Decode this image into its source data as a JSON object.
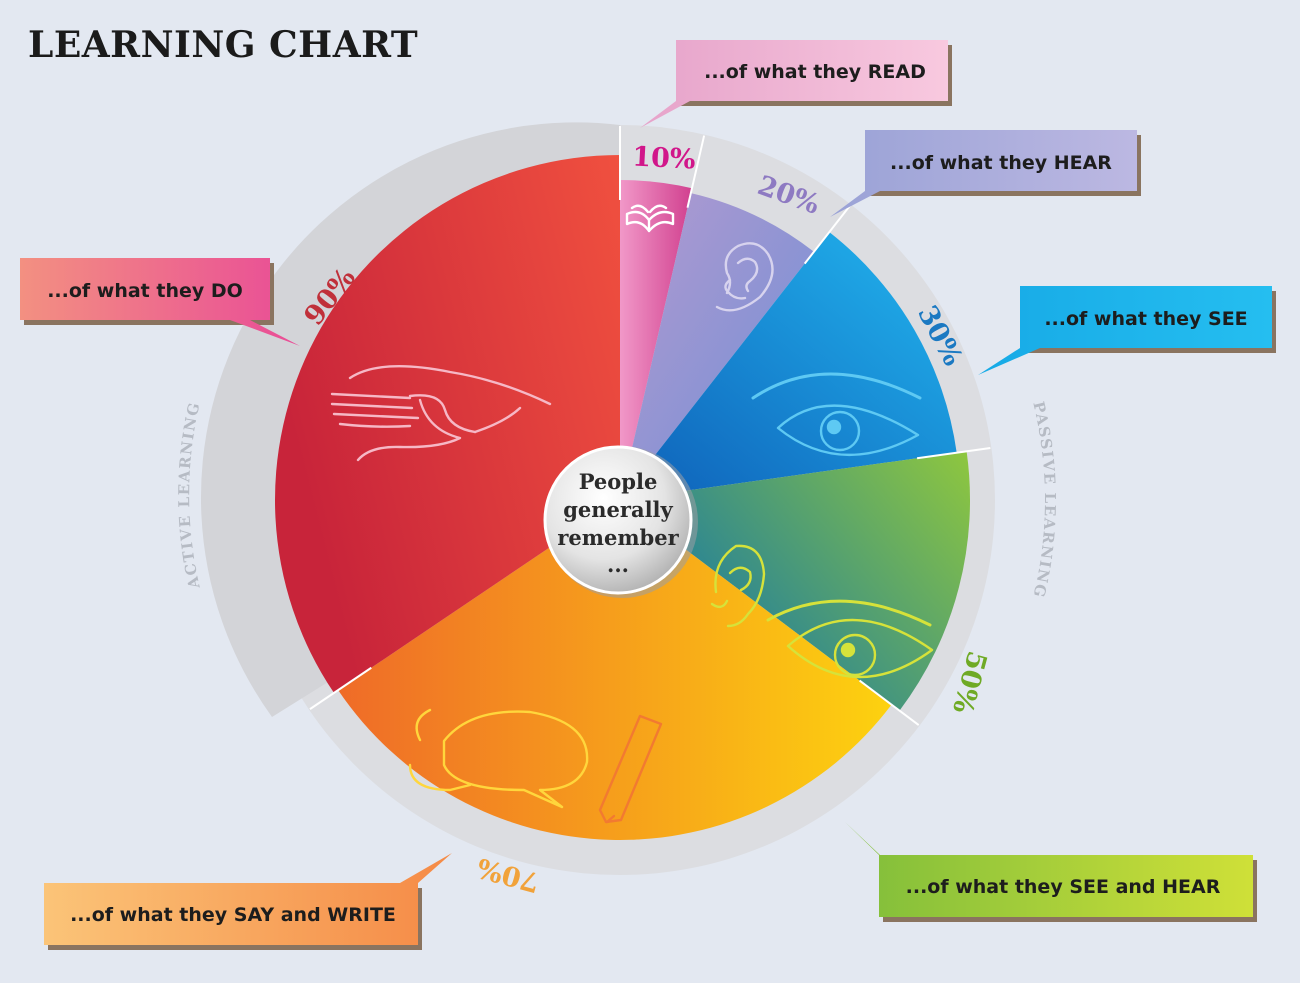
{
  "title": "LEARNING CHART",
  "center": {
    "lines": [
      "People",
      "generally",
      "remember",
      "..."
    ]
  },
  "ring_labels": {
    "active": "ACTIVE LEARNING",
    "passive": "PASSIVE LEARNING"
  },
  "segments": [
    {
      "id": "read",
      "percent": "10%",
      "label": "...of what they READ",
      "pct_color": "#d1168a",
      "color_a": "#ef8cc4",
      "color_b": "#d33f93",
      "icon": "book-icon"
    },
    {
      "id": "hear",
      "percent": "20%",
      "label": "...of what they HEAR",
      "pct_color": "#8e7ac2",
      "color_a": "#a69ad3",
      "color_b": "#7e87cc",
      "icon": "ear-icon"
    },
    {
      "id": "see",
      "percent": "30%",
      "label": "...of what they SEE",
      "pct_color": "#1b79c2",
      "color_a": "#1fa5e8",
      "color_b": "#1268bf",
      "icon": "eye-icon"
    },
    {
      "id": "see-and-hear",
      "percent": "50%",
      "label": "...of what they SEE and HEAR",
      "pct_color": "#6faa25",
      "color_a": "#8cc43c",
      "color_b": "#1a7aa6",
      "icon": "ear-and-eye-icon"
    },
    {
      "id": "say-and-write",
      "percent": "70%",
      "label": "...of what they SAY and WRITE",
      "pct_color": "#f1a23a",
      "color_a": "#fcd514",
      "color_b": "#ef7427",
      "icon": "speech-and-pencil-icon"
    },
    {
      "id": "do",
      "percent": "90%",
      "label": "...of what they DO",
      "pct_color": "#c0303a",
      "color_a": "#ee4a3e",
      "color_b": "#cc2233",
      "icon": "hand-icon"
    }
  ],
  "callout_colors": {
    "read": [
      "#f6c3dd",
      "#e8a5cb"
    ],
    "hear": [
      "#b6b6e0",
      "#949ad1"
    ],
    "see": [
      "#1fbbed",
      "#0f9fe0"
    ],
    "see-and-hear": [
      "#8fc43a",
      "#c7dc38"
    ],
    "say-and-write": [
      "#fbbf72",
      "#f7964c"
    ],
    "do": [
      "#ec5b98",
      "#f28c7c"
    ]
  }
}
